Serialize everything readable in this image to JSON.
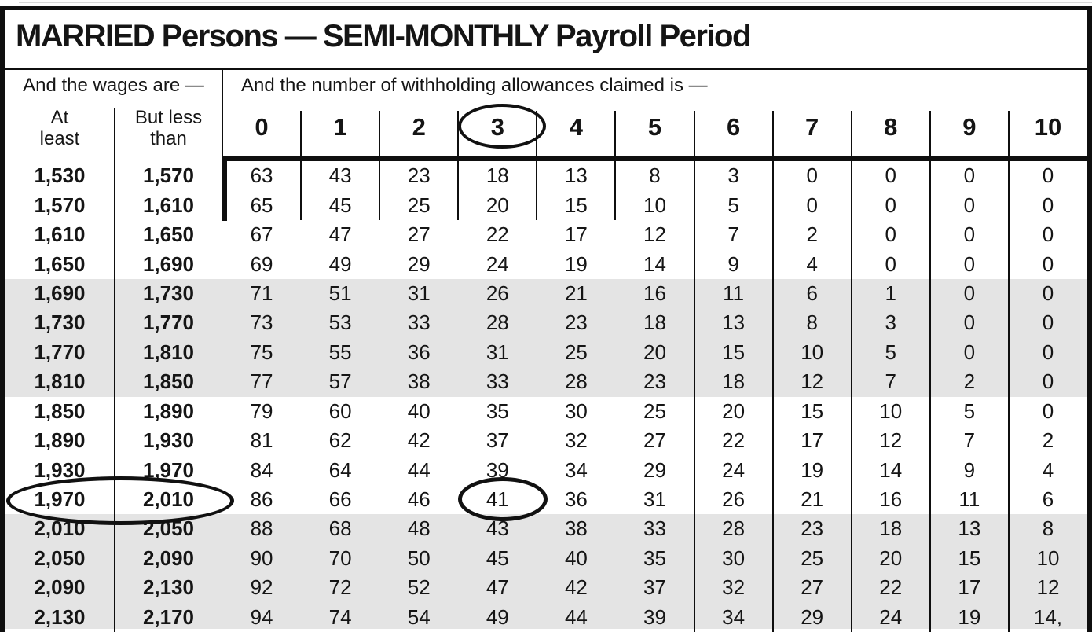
{
  "title": "MARRIED Persons — SEMI-MONTHLY Payroll Period",
  "header": {
    "wages_label": "And the wages are —",
    "allowances_label": "And the number of withholding allowances claimed is —",
    "at_least_label": "At\nleast",
    "but_less_label": "But less\nthan",
    "allowance_columns": [
      "0",
      "1",
      "2",
      "3",
      "4",
      "5",
      "6",
      "7",
      "8",
      "9",
      "10"
    ]
  },
  "annotations": {
    "circled_allowance_column": "3",
    "circled_wage_row": {
      "at_least": "1,970",
      "but_less_than": "2,010"
    },
    "circled_value": "41"
  },
  "colors": {
    "shaded_row": "#e4e4e4",
    "rule": "#0f0f0f",
    "text": "#151515"
  },
  "rows": [
    {
      "at_least": "1,530",
      "but_less_than": "1,570",
      "shaded": false,
      "values": [
        "63",
        "43",
        "23",
        "18",
        "13",
        "8",
        "3",
        "0",
        "0",
        "0",
        "0"
      ]
    },
    {
      "at_least": "1,570",
      "but_less_than": "1,610",
      "shaded": false,
      "values": [
        "65",
        "45",
        "25",
        "20",
        "15",
        "10",
        "5",
        "0",
        "0",
        "0",
        "0"
      ]
    },
    {
      "at_least": "1,610",
      "but_less_than": "1,650",
      "shaded": false,
      "values": [
        "67",
        "47",
        "27",
        "22",
        "17",
        "12",
        "7",
        "2",
        "0",
        "0",
        "0"
      ]
    },
    {
      "at_least": "1,650",
      "but_less_than": "1,690",
      "shaded": false,
      "values": [
        "69",
        "49",
        "29",
        "24",
        "19",
        "14",
        "9",
        "4",
        "0",
        "0",
        "0"
      ]
    },
    {
      "at_least": "1,690",
      "but_less_than": "1,730",
      "shaded": true,
      "values": [
        "71",
        "51",
        "31",
        "26",
        "21",
        "16",
        "11",
        "6",
        "1",
        "0",
        "0"
      ]
    },
    {
      "at_least": "1,730",
      "but_less_than": "1,770",
      "shaded": true,
      "values": [
        "73",
        "53",
        "33",
        "28",
        "23",
        "18",
        "13",
        "8",
        "3",
        "0",
        "0"
      ]
    },
    {
      "at_least": "1,770",
      "but_less_than": "1,810",
      "shaded": true,
      "values": [
        "75",
        "55",
        "36",
        "31",
        "25",
        "20",
        "15",
        "10",
        "5",
        "0",
        "0"
      ]
    },
    {
      "at_least": "1,810",
      "but_less_than": "1,850",
      "shaded": true,
      "values": [
        "77",
        "57",
        "38",
        "33",
        "28",
        "23",
        "18",
        "12",
        "7",
        "2",
        "0"
      ]
    },
    {
      "at_least": "1,850",
      "but_less_than": "1,890",
      "shaded": false,
      "values": [
        "79",
        "60",
        "40",
        "35",
        "30",
        "25",
        "20",
        "15",
        "10",
        "5",
        "0"
      ]
    },
    {
      "at_least": "1,890",
      "but_less_than": "1,930",
      "shaded": false,
      "values": [
        "81",
        "62",
        "42",
        "37",
        "32",
        "27",
        "22",
        "17",
        "12",
        "7",
        "2"
      ]
    },
    {
      "at_least": "1,930",
      "but_less_than": "1,970",
      "shaded": false,
      "values": [
        "84",
        "64",
        "44",
        "39",
        "34",
        "29",
        "24",
        "19",
        "14",
        "9",
        "4"
      ]
    },
    {
      "at_least": "1,970",
      "but_less_than": "2,010",
      "shaded": false,
      "values": [
        "86",
        "66",
        "46",
        "41",
        "36",
        "31",
        "26",
        "21",
        "16",
        "11",
        "6"
      ]
    },
    {
      "at_least": "2,010",
      "but_less_than": "2,050",
      "shaded": true,
      "values": [
        "88",
        "68",
        "48",
        "43",
        "38",
        "33",
        "28",
        "23",
        "18",
        "13",
        "8"
      ]
    },
    {
      "at_least": "2,050",
      "but_less_than": "2,090",
      "shaded": true,
      "values": [
        "90",
        "70",
        "50",
        "45",
        "40",
        "35",
        "30",
        "25",
        "20",
        "15",
        "10"
      ]
    },
    {
      "at_least": "2,090",
      "but_less_than": "2,130",
      "shaded": true,
      "values": [
        "92",
        "72",
        "52",
        "47",
        "42",
        "37",
        "32",
        "27",
        "22",
        "17",
        "12"
      ]
    },
    {
      "at_least": "2,130",
      "but_less_than": "2,170",
      "shaded": true,
      "values": [
        "94",
        "74",
        "54",
        "49",
        "44",
        "39",
        "34",
        "29",
        "24",
        "19",
        "14,"
      ]
    }
  ]
}
